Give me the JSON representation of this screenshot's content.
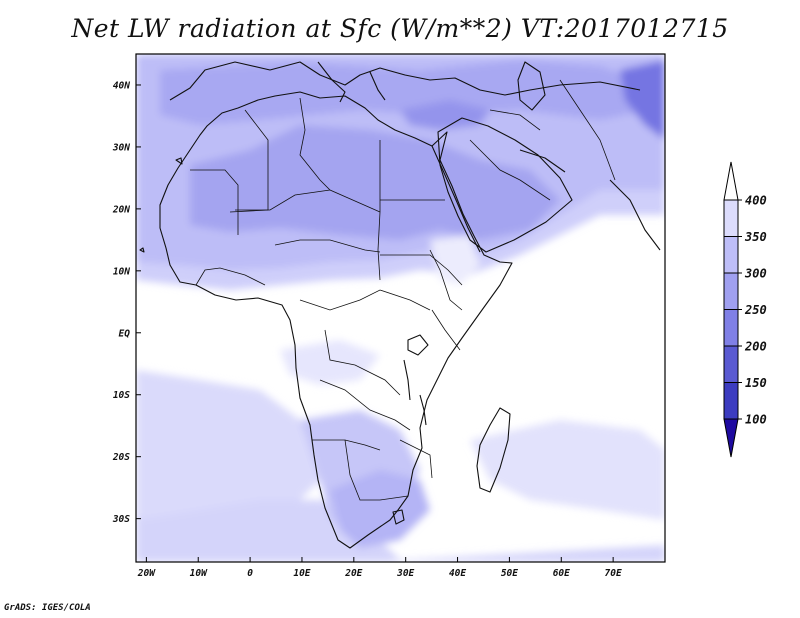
{
  "title": "Net LW radiation at Sfc (W/m**2) VT:2017012715",
  "credit": "GrADS: IGES/COLA",
  "map": {
    "projection": "lat-lon",
    "lon_range": [
      -22,
      80
    ],
    "lat_range": [
      -37,
      45
    ],
    "lon_ticks": [
      {
        "value": -20,
        "label": "20W"
      },
      {
        "value": -10,
        "label": "10W"
      },
      {
        "value": 0,
        "label": "0"
      },
      {
        "value": 10,
        "label": "10E"
      },
      {
        "value": 20,
        "label": "20E"
      },
      {
        "value": 30,
        "label": "30E"
      },
      {
        "value": 40,
        "label": "40E"
      },
      {
        "value": 50,
        "label": "50E"
      },
      {
        "value": 60,
        "label": "60E"
      },
      {
        "value": 70,
        "label": "70E"
      }
    ],
    "lat_ticks": [
      {
        "value": 40,
        "label": "40N"
      },
      {
        "value": 30,
        "label": "30N"
      },
      {
        "value": 20,
        "label": "20N"
      },
      {
        "value": 10,
        "label": "10N"
      },
      {
        "value": 0,
        "label": "EQ"
      },
      {
        "value": -10,
        "label": "10S"
      },
      {
        "value": -20,
        "label": "20S"
      },
      {
        "value": -30,
        "label": "30S"
      }
    ]
  },
  "colorbar": {
    "levels": [
      {
        "label": "400",
        "value": 400
      },
      {
        "label": "350",
        "value": 350
      },
      {
        "label": "300",
        "value": 300
      },
      {
        "label": "250",
        "value": 250
      },
      {
        "label": "200",
        "value": 200
      },
      {
        "label": "150",
        "value": 150
      },
      {
        "label": "100",
        "value": 100
      }
    ],
    "colors": [
      "#ffffff",
      "#dcdcfc",
      "#bebef8",
      "#a0a0f0",
      "#8080e6",
      "#5a5ad2",
      "#3c3cc0",
      "#1e0aa0"
    ]
  }
}
